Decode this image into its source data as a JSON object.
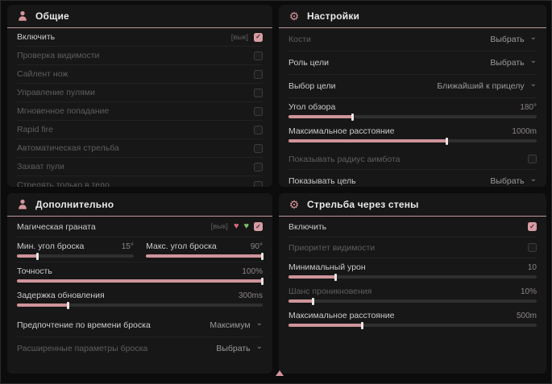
{
  "colors": {
    "accent": "#d4959c",
    "panel_bg": "#171717",
    "page_bg": "#0c0c0c",
    "checkbox_checked": "#d79ca3",
    "slider_fill": "#cf949b"
  },
  "icons": {
    "gear": "⚙",
    "chevron": "⌄",
    "heart_pink": "♥",
    "heart_green": "♥",
    "scroll_up": "▲"
  },
  "panels": {
    "general": {
      "title": "Общие",
      "rows": [
        {
          "label": "Включить",
          "tag": "[вык]",
          "checked": true
        },
        {
          "label": "Проверка видимости",
          "checked": false
        },
        {
          "label": "Сайлент нож",
          "checked": false
        },
        {
          "label": "Управление пулями",
          "checked": false
        },
        {
          "label": "Мгновенное попадание",
          "checked": false
        },
        {
          "label": "Rapid fire",
          "checked": false
        },
        {
          "label": "Автоматическая стрельба",
          "checked": false
        },
        {
          "label": "Захват пули",
          "checked": false
        },
        {
          "label": "Стрелять только в тело",
          "checked": false
        }
      ]
    },
    "settings": {
      "title": "Настройки",
      "bones": {
        "label": "Кости",
        "value": "Выбрать"
      },
      "target_role": {
        "label": "Роль цели",
        "value": "Выбрать"
      },
      "target_select": {
        "label": "Выбор цели",
        "value": "Ближайший к прицелу"
      },
      "fov": {
        "label": "Угол обзора",
        "value": "180°",
        "fill": 26
      },
      "max_distance": {
        "label": "Максимальное расстояние",
        "value": "1000m",
        "fill": 64
      },
      "show_radius": {
        "label": "Показывать радиус аимбота",
        "checked": false
      },
      "show_target": {
        "label": "Показывать цель",
        "value": "Выбрать"
      }
    },
    "additional": {
      "title": "Дополнительно",
      "magic_grenade": {
        "label": "Магическая граната",
        "tag": "[вык]",
        "checked": true
      },
      "min_angle": {
        "label": "Мин. угол броска",
        "value": "15°",
        "fill": 18
      },
      "max_angle": {
        "label": "Макс. угол броска",
        "value": "90°",
        "fill": 100
      },
      "accuracy": {
        "label": "Точность",
        "value": "100%",
        "fill": 100
      },
      "delay": {
        "label": "Задержка обновления",
        "value": "300ms",
        "fill": 21
      },
      "time_pref": {
        "label": "Предпочтение по времени броска",
        "value": "Максимум"
      },
      "advanced": {
        "label": "Расширенные параметры броска",
        "value": "Выбрать"
      }
    },
    "wallbang": {
      "title": "Стрельба через стены",
      "enable": {
        "label": "Включить",
        "checked": true
      },
      "vis_priority": {
        "label": "Приоритет видимости",
        "checked": false
      },
      "min_damage": {
        "label": "Минимальный урон",
        "value": "10",
        "fill": 19
      },
      "pen_chance": {
        "label": "Шанс проникновения",
        "value": "10%",
        "fill": 10
      },
      "max_distance": {
        "label": "Максимальное расстояние",
        "value": "500m",
        "fill": 30
      }
    }
  }
}
